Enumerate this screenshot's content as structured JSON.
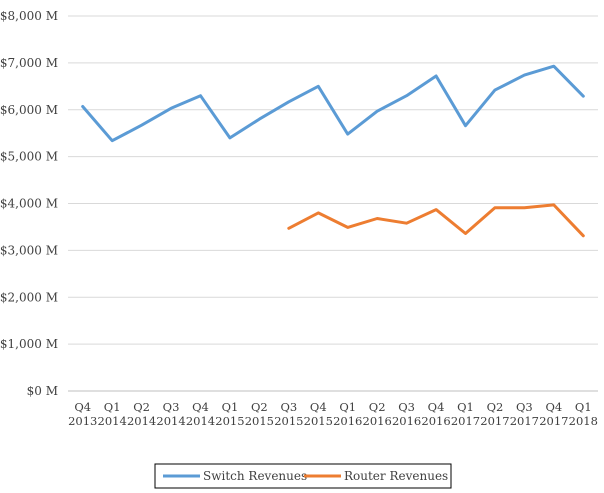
{
  "chart_data": {
    "type": "line",
    "title": "",
    "xlabel": "",
    "ylabel": "",
    "ylim": [
      0,
      8000
    ],
    "y_ticks": [
      "$0 M",
      "$1,000 M",
      "$2,000 M",
      "$3,000 M",
      "$4,000 M",
      "$5,000 M",
      "$6,000 M",
      "$7,000 M",
      "$8,000 M"
    ],
    "categories": [
      [
        "Q4",
        "2013"
      ],
      [
        "Q1",
        "2014"
      ],
      [
        "Q2",
        "2014"
      ],
      [
        "Q3",
        "2014"
      ],
      [
        "Q4",
        "2014"
      ],
      [
        "Q1",
        "2015"
      ],
      [
        "Q2",
        "2015"
      ],
      [
        "Q3",
        "2015"
      ],
      [
        "Q4",
        "2015"
      ],
      [
        "Q1",
        "2016"
      ],
      [
        "Q2",
        "2016"
      ],
      [
        "Q3",
        "2016"
      ],
      [
        "Q4",
        "2016"
      ],
      [
        "Q1",
        "2017"
      ],
      [
        "Q2",
        "2017"
      ],
      [
        "Q3",
        "2017"
      ],
      [
        "Q4",
        "2017"
      ],
      [
        "Q1",
        "2018"
      ]
    ],
    "series": [
      {
        "name": "Switch Revenues",
        "color": "#5b9bd5",
        "values": [
          6070,
          5340,
          5670,
          6030,
          6300,
          5400,
          5800,
          6170,
          6500,
          5480,
          5970,
          6300,
          6720,
          5660,
          6420,
          6740,
          6930,
          6290
        ]
      },
      {
        "name": "Router Revenues",
        "color": "#ed7d31",
        "values": [
          null,
          null,
          null,
          null,
          null,
          null,
          null,
          3470,
          3800,
          3490,
          3680,
          3580,
          3870,
          3360,
          3910,
          3910,
          3970,
          3310
        ]
      }
    ],
    "grid": true,
    "legend": "bottom"
  }
}
